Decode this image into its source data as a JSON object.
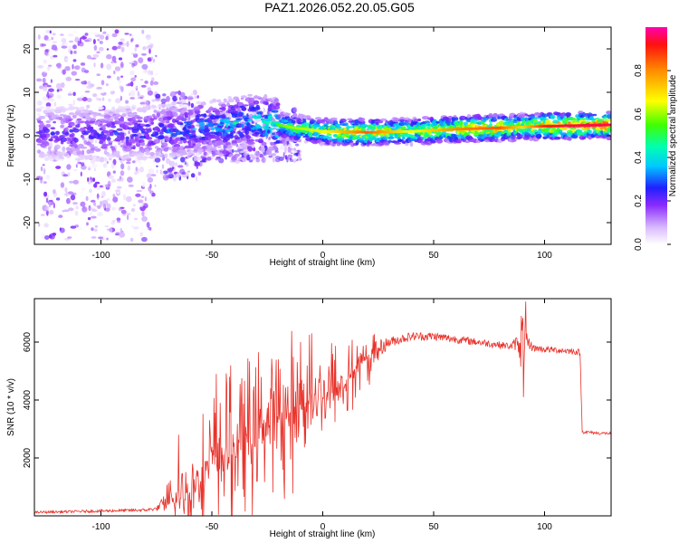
{
  "title": "PAZ1.2026.052.20.05.G05",
  "chart_data": [
    {
      "type": "heatmap",
      "xlabel": "Height of straight line (km)",
      "ylabel": "Frequency (Hz)",
      "xlim": [
        -130,
        130
      ],
      "ylim": [
        -25,
        25
      ],
      "x_ticks": [
        -100,
        -50,
        0,
        50,
        100
      ],
      "y_ticks": [
        -20,
        -10,
        0,
        10,
        20
      ],
      "colorbar": {
        "label": "Normalized spectral amplitude",
        "range": [
          0,
          1
        ],
        "ticks": [
          0.0,
          0.2,
          0.4,
          0.6,
          0.8
        ]
      },
      "ridge": {
        "x": [
          -130,
          -100,
          -75,
          -60,
          -45,
          -35,
          -25,
          -15,
          0,
          20,
          40,
          60,
          80,
          90,
          100,
          110,
          130
        ],
        "freq": [
          0.5,
          0.5,
          0.8,
          1.5,
          2.5,
          3.5,
          3.0,
          2.0,
          1.0,
          0.8,
          1.0,
          1.5,
          1.8,
          2.0,
          2.2,
          2.3,
          2.5
        ],
        "amplitude": [
          0.25,
          0.25,
          0.3,
          0.35,
          0.4,
          0.45,
          0.5,
          0.6,
          0.65,
          0.85,
          0.65,
          0.8,
          0.85,
          0.7,
          0.9,
          0.95,
          0.95
        ]
      }
    },
    {
      "type": "line",
      "xlabel": "Height of straight line (km)",
      "ylabel": "SNR (10 * v/v)",
      "xlim": [
        -130,
        130
      ],
      "ylim": [
        0,
        7500
      ],
      "x_ticks": [
        -100,
        -50,
        0,
        50,
        100
      ],
      "y_ticks": [
        2000,
        4000,
        6000
      ],
      "series": [
        {
          "name": "SNR",
          "color": "#e8322a",
          "envelope_x": [
            -130,
            -80,
            -75,
            -70,
            -60,
            -50,
            -40,
            -30,
            -20,
            -10,
            0,
            10,
            20,
            30,
            40,
            50,
            60,
            70,
            80,
            85,
            88,
            90,
            92,
            95,
            100,
            110,
            116,
            117,
            118,
            125,
            130
          ],
          "envelope_y": [
            120,
            200,
            250,
            500,
            1000,
            2000,
            2400,
            3000,
            3600,
            4000,
            4400,
            4700,
            5500,
            6000,
            6200,
            6200,
            6100,
            6000,
            5900,
            5850,
            6000,
            6400,
            6000,
            5800,
            5750,
            5700,
            5650,
            2900,
            2900,
            2850,
            2850
          ],
          "noise_amp_y": [
            40,
            50,
            60,
            400,
            900,
            1300,
            1400,
            1400,
            1400,
            1300,
            1200,
            900,
            500,
            180,
            150,
            150,
            140,
            130,
            120,
            120,
            300,
            900,
            300,
            120,
            110,
            110,
            110,
            60,
            60,
            50,
            50
          ],
          "spikes": [
            {
              "x": 91.5,
              "y": 7400
            },
            {
              "x": 90.5,
              "y": 4100
            },
            {
              "x": -48,
              "y": 4900
            },
            {
              "x": -42,
              "y": 4800
            },
            {
              "x": -10,
              "y": 6000
            },
            {
              "x": -5,
              "y": 6300
            },
            {
              "x": -65,
              "y": 2800
            }
          ]
        }
      ]
    }
  ]
}
